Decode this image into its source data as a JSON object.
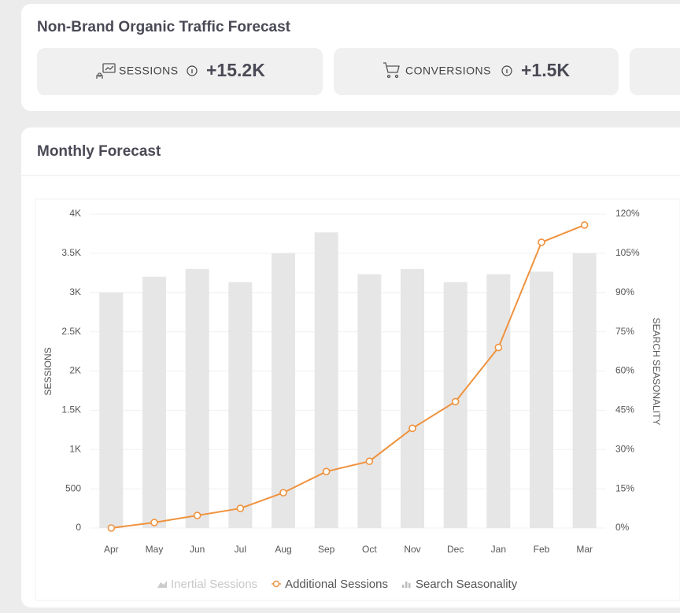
{
  "header": {
    "title": "Non-Brand Organic Traffic Forecast"
  },
  "kpis": [
    {
      "label": "SESSIONS",
      "value": "+15.2K"
    },
    {
      "label": "CONVERSIONS",
      "value": "+1.5K"
    }
  ],
  "panel": {
    "title": "Monthly Forecast"
  },
  "chart_data": {
    "type": "bar_line",
    "categories": [
      "Apr",
      "May",
      "Jun",
      "Jul",
      "Aug",
      "Sep",
      "Oct",
      "Nov",
      "Dec",
      "Jan",
      "Feb",
      "Mar"
    ],
    "ylabel": "SESSIONS",
    "y2label": "SEARCH SEASONALITY",
    "ylim": [
      0,
      4000
    ],
    "yticks": [
      0,
      500,
      {
        "value": 1000,
        "label": "1K"
      },
      {
        "value": 1500,
        "label": "1.5K"
      },
      {
        "value": 2000,
        "label": "2K"
      },
      {
        "value": 2500,
        "label": "2.5K"
      },
      {
        "value": 3000,
        "label": "3K"
      },
      {
        "value": 3500,
        "label": "3.5K"
      },
      {
        "value": 4000,
        "label": "4K"
      }
    ],
    "y2lim": [
      0,
      120
    ],
    "y2ticks": [
      {
        "value": 0,
        "label": "0%"
      },
      {
        "value": 15,
        "label": "15%"
      },
      {
        "value": 30,
        "label": "30%"
      },
      {
        "value": 45,
        "label": "45%"
      },
      {
        "value": 60,
        "label": "60%"
      },
      {
        "value": 75,
        "label": "75%"
      },
      {
        "value": 90,
        "label": "90%"
      },
      {
        "value": 105,
        "label": "105%"
      },
      {
        "value": 120,
        "label": "120%"
      }
    ],
    "grid": true,
    "series": [
      {
        "name": "Inertial Sessions",
        "color": "#cfcfcf",
        "kind": "area",
        "hidden": true,
        "values": [
          null,
          null,
          null,
          null,
          null,
          null,
          null,
          null,
          null,
          null,
          null,
          null
        ]
      },
      {
        "name": "Additional Sessions",
        "color": "#f0923e",
        "kind": "line",
        "values": [
          0,
          70,
          160,
          250,
          450,
          720,
          850,
          1270,
          1610,
          2300,
          3640,
          3860
        ]
      },
      {
        "name": "Search Seasonality",
        "color": "#e6e6e6",
        "kind": "bar",
        "axis": "y2",
        "values": [
          90,
          96,
          99,
          94,
          105,
          113,
          97,
          99,
          94,
          97,
          98,
          105
        ]
      }
    ]
  }
}
